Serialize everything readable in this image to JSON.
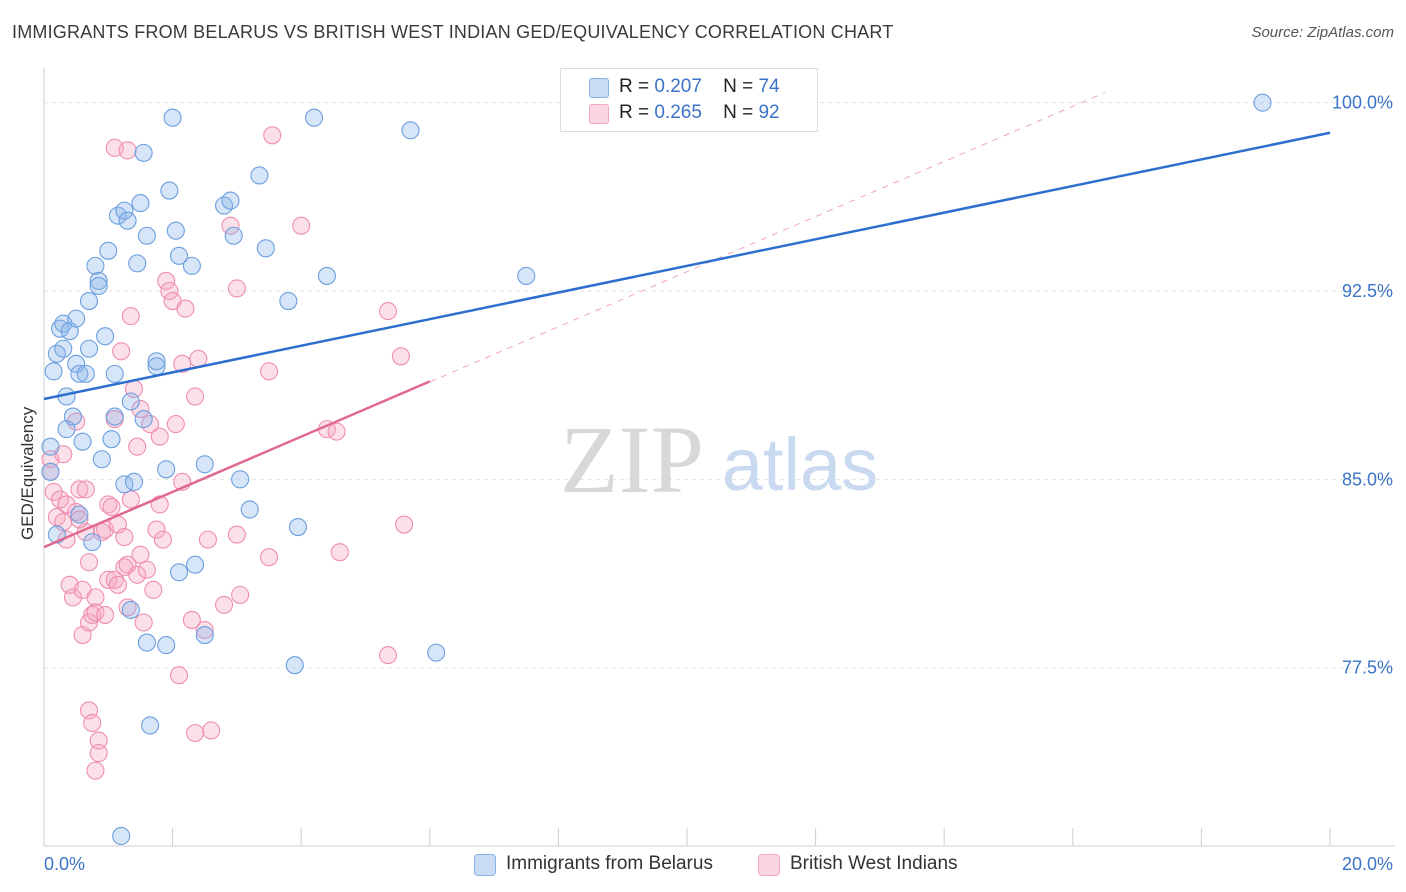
{
  "header": {
    "title": "IMMIGRANTS FROM BELARUS VS BRITISH WEST INDIAN GED/EQUIVALENCY CORRELATION CHART",
    "source": "Source: ZipAtlas.com"
  },
  "watermark": {
    "zip": "ZIP",
    "atlas": "atlas"
  },
  "legend": {
    "rows": [
      {
        "r_label": "R =",
        "r_value": "0.207",
        "n_label": "N =",
        "n_value": "74"
      },
      {
        "r_label": "R =",
        "r_value": "0.265",
        "n_label": "N =",
        "n_value": "92"
      }
    ]
  },
  "chart_data": {
    "type": "scatter",
    "title": "IMMIGRANTS FROM BELARUS VS BRITISH WEST INDIAN GED/EQUIVALENCY CORRELATION CHART",
    "xlabel": "",
    "ylabel": "GED/Equivalency",
    "xlim": [
      0,
      20
    ],
    "ylim": [
      70.4,
      101.3
    ],
    "x_tick_labels": [
      "0.0%",
      "20.0%"
    ],
    "y_ticks": [
      77.5,
      85.0,
      92.5,
      100.0
    ],
    "y_tick_labels": [
      "77.5%",
      "85.0%",
      "92.5%",
      "100.0%"
    ],
    "grid": true,
    "legend_position": "top-center",
    "series": [
      {
        "name": "Immigrants from Belarus",
        "color": "#8ab4e8",
        "line_color": "#2d6fcf",
        "trend": {
          "x": [
            0,
            20
          ],
          "y": [
            88.2,
            98.8
          ]
        },
        "points": [
          [
            0.1,
            86.3
          ],
          [
            0.1,
            85.3
          ],
          [
            0.15,
            89.3
          ],
          [
            0.2,
            90.0
          ],
          [
            0.2,
            82.8
          ],
          [
            0.25,
            91.0
          ],
          [
            0.3,
            90.2
          ],
          [
            0.3,
            91.2
          ],
          [
            0.35,
            88.3
          ],
          [
            0.4,
            90.9
          ],
          [
            0.45,
            87.5
          ],
          [
            0.5,
            89.6
          ],
          [
            0.5,
            91.4
          ],
          [
            0.55,
            89.2
          ],
          [
            0.6,
            86.5
          ],
          [
            0.65,
            89.2
          ],
          [
            0.7,
            92.1
          ],
          [
            0.7,
            90.2
          ],
          [
            0.75,
            82.5
          ],
          [
            0.8,
            93.5
          ],
          [
            0.85,
            92.9
          ],
          [
            0.85,
            92.7
          ],
          [
            0.9,
            85.8
          ],
          [
            0.95,
            90.7
          ],
          [
            1.0,
            94.1
          ],
          [
            1.05,
            86.6
          ],
          [
            1.1,
            89.2
          ],
          [
            1.1,
            87.5
          ],
          [
            1.15,
            95.5
          ],
          [
            1.2,
            70.8
          ],
          [
            1.25,
            95.7
          ],
          [
            1.25,
            84.8
          ],
          [
            1.3,
            95.3
          ],
          [
            1.35,
            79.8
          ],
          [
            1.35,
            88.1
          ],
          [
            1.4,
            84.9
          ],
          [
            1.45,
            93.6
          ],
          [
            1.5,
            96.0
          ],
          [
            1.55,
            98.0
          ],
          [
            1.55,
            87.4
          ],
          [
            1.6,
            94.7
          ],
          [
            1.6,
            78.5
          ],
          [
            1.65,
            75.2
          ],
          [
            1.75,
            89.5
          ],
          [
            1.75,
            89.7
          ],
          [
            1.9,
            78.4
          ],
          [
            1.9,
            85.4
          ],
          [
            1.95,
            96.5
          ],
          [
            2.0,
            99.4
          ],
          [
            2.05,
            94.9
          ],
          [
            2.1,
            93.9
          ],
          [
            2.1,
            81.3
          ],
          [
            2.3,
            93.5
          ],
          [
            2.35,
            81.6
          ],
          [
            2.5,
            85.6
          ],
          [
            2.5,
            78.8
          ],
          [
            2.8,
            95.9
          ],
          [
            2.9,
            96.1
          ],
          [
            2.95,
            94.7
          ],
          [
            3.05,
            85.0
          ],
          [
            3.2,
            83.8
          ],
          [
            3.35,
            97.1
          ],
          [
            3.45,
            94.2
          ],
          [
            3.8,
            92.1
          ],
          [
            3.9,
            77.6
          ],
          [
            3.95,
            83.1
          ],
          [
            4.2,
            99.4
          ],
          [
            4.4,
            93.1
          ],
          [
            5.7,
            98.9
          ],
          [
            6.1,
            78.1
          ],
          [
            7.5,
            93.1
          ],
          [
            18.95,
            100.0
          ],
          [
            0.35,
            87.0
          ],
          [
            0.55,
            83.6
          ]
        ]
      },
      {
        "name": "British West Indians",
        "color": "#f4a7c0",
        "line_color": "#e0688f",
        "trend": {
          "x": [
            0,
            6
          ],
          "y": [
            82.3,
            88.9
          ]
        },
        "trend_dashed": {
          "x": [
            0,
            16.5
          ],
          "y": [
            82.3,
            100.4
          ]
        },
        "points": [
          [
            0.1,
            85.8
          ],
          [
            0.1,
            85.3
          ],
          [
            0.15,
            84.5
          ],
          [
            0.2,
            83.5
          ],
          [
            0.25,
            84.2
          ],
          [
            0.3,
            86.0
          ],
          [
            0.3,
            83.3
          ],
          [
            0.35,
            84.0
          ],
          [
            0.35,
            82.6
          ],
          [
            0.4,
            80.8
          ],
          [
            0.45,
            80.3
          ],
          [
            0.5,
            83.7
          ],
          [
            0.5,
            87.3
          ],
          [
            0.55,
            84.6
          ],
          [
            0.6,
            80.6
          ],
          [
            0.6,
            78.8
          ],
          [
            0.65,
            82.9
          ],
          [
            0.7,
            79.3
          ],
          [
            0.7,
            75.8
          ],
          [
            0.7,
            81.7
          ],
          [
            0.75,
            79.6
          ],
          [
            0.75,
            75.3
          ],
          [
            0.8,
            80.3
          ],
          [
            0.8,
            79.7
          ],
          [
            0.8,
            73.4
          ],
          [
            0.85,
            74.1
          ],
          [
            0.85,
            74.6
          ],
          [
            0.9,
            82.9
          ],
          [
            0.95,
            83.0
          ],
          [
            0.95,
            79.6
          ],
          [
            1.0,
            84.0
          ],
          [
            1.0,
            81.0
          ],
          [
            1.05,
            83.9
          ],
          [
            1.1,
            81.0
          ],
          [
            1.1,
            87.4
          ],
          [
            1.15,
            83.2
          ],
          [
            1.15,
            80.8
          ],
          [
            1.2,
            90.1
          ],
          [
            1.25,
            81.5
          ],
          [
            1.25,
            82.7
          ],
          [
            1.3,
            81.6
          ],
          [
            1.3,
            79.9
          ],
          [
            1.35,
            91.5
          ],
          [
            1.35,
            84.2
          ],
          [
            1.4,
            88.6
          ],
          [
            1.45,
            86.3
          ],
          [
            1.45,
            81.2
          ],
          [
            1.5,
            82.0
          ],
          [
            1.5,
            87.8
          ],
          [
            1.55,
            79.3
          ],
          [
            1.6,
            81.4
          ],
          [
            1.65,
            87.2
          ],
          [
            1.7,
            80.6
          ],
          [
            1.75,
            83.0
          ],
          [
            1.8,
            84.0
          ],
          [
            1.85,
            82.6
          ],
          [
            1.9,
            92.9
          ],
          [
            1.95,
            92.5
          ],
          [
            2.0,
            92.1
          ],
          [
            2.05,
            87.2
          ],
          [
            2.1,
            77.2
          ],
          [
            2.15,
            89.6
          ],
          [
            2.15,
            84.9
          ],
          [
            2.2,
            91.8
          ],
          [
            2.3,
            79.4
          ],
          [
            2.35,
            74.9
          ],
          [
            2.35,
            88.3
          ],
          [
            2.4,
            89.8
          ],
          [
            2.5,
            79.0
          ],
          [
            2.55,
            82.6
          ],
          [
            2.6,
            75.0
          ],
          [
            2.8,
            80.0
          ],
          [
            2.9,
            95.1
          ],
          [
            3.0,
            92.6
          ],
          [
            3.0,
            82.8
          ],
          [
            3.05,
            80.4
          ],
          [
            3.5,
            89.3
          ],
          [
            3.5,
            81.9
          ],
          [
            3.55,
            98.7
          ],
          [
            4.0,
            95.1
          ],
          [
            4.4,
            87.0
          ],
          [
            4.55,
            86.9
          ],
          [
            4.6,
            82.1
          ],
          [
            5.35,
            91.7
          ],
          [
            5.35,
            78.0
          ],
          [
            5.55,
            89.9
          ],
          [
            5.6,
            83.2
          ],
          [
            1.1,
            98.2
          ],
          [
            1.3,
            98.1
          ],
          [
            0.55,
            83.4
          ],
          [
            0.65,
            84.6
          ],
          [
            1.8,
            86.7
          ]
        ]
      }
    ]
  },
  "bottom_legend": {
    "items": [
      {
        "label": "Immigrants from Belarus"
      },
      {
        "label": "British West Indians"
      }
    ]
  },
  "axis": {
    "x_min_label": "0.0%",
    "x_max_label": "20.0%"
  }
}
